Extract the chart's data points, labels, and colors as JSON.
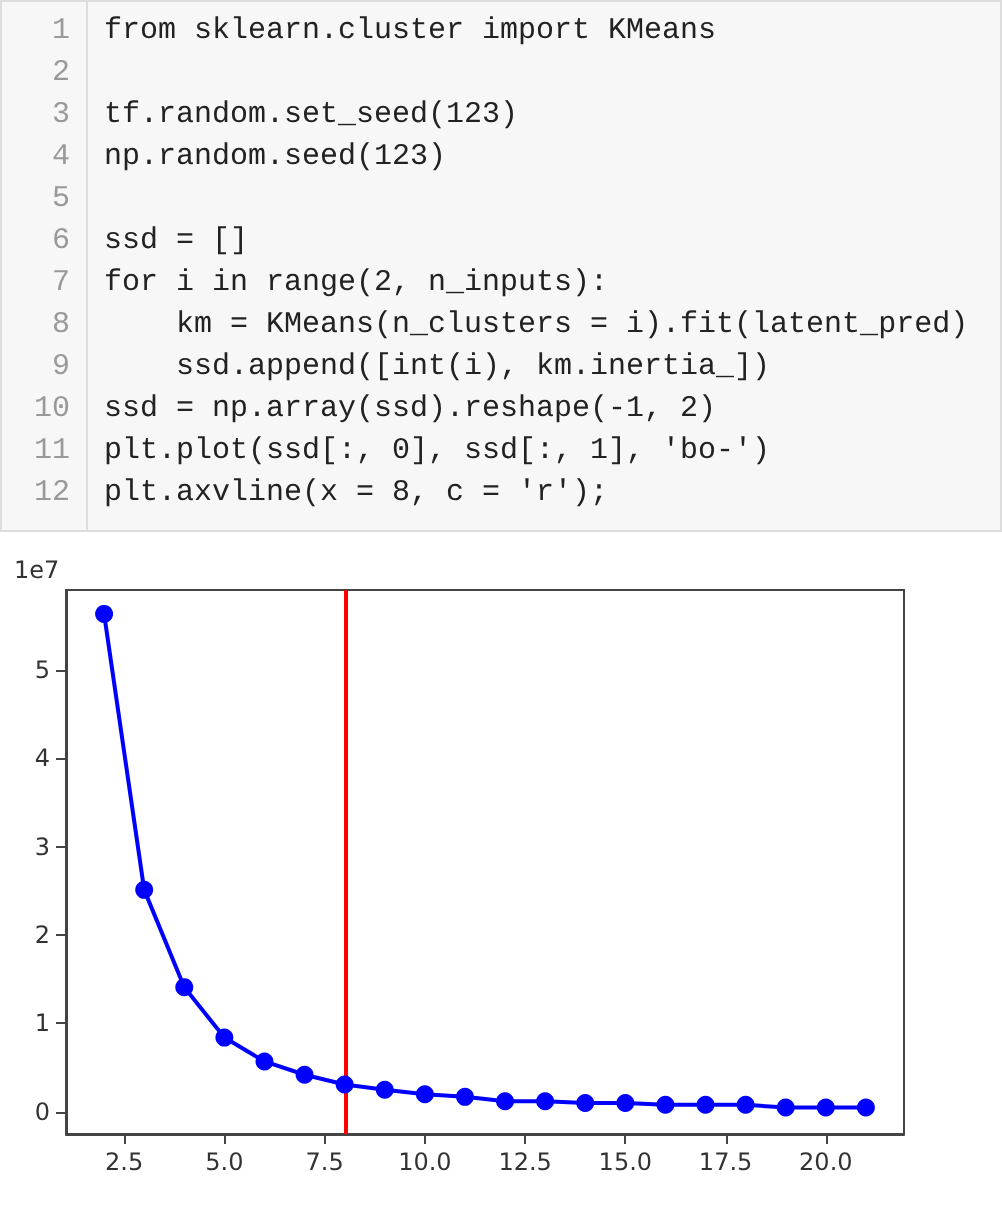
{
  "chart_data": {
    "type": "line",
    "ylabel": "1e7",
    "annotations": [
      "1 from sklearn.cluster import KMeans",
      "2",
      "3 tf.random.set_seed(123)",
      "4 np.random.seed(123)",
      "5",
      "6 ssd = []",
      "7 for i in range(2, n_inputs):",
      "8     km = KMeans(n_clusters = i).fit(latent_pred)",
      "9     ssd.append([int(i), km.inertia_])",
      "10 ssd = np.array(ssd).reshape(-1, 2)",
      "11 plt.plot(ssd[:, 0], ssd[:, 1], 'bo-')",
      "12 plt.axvline(x = 8, c = 'r');"
    ],
    "x": [
      2,
      3,
      4,
      5,
      6,
      7,
      8,
      9,
      10,
      11,
      12,
      13,
      14,
      15,
      16,
      17,
      18,
      19,
      20,
      21
    ],
    "series": [
      {
        "color": "#0000ff",
        "values": [
          5.63,
          2.51,
          1.41,
          0.84,
          0.57,
          0.42,
          0.31,
          0.25,
          0.2,
          0.17,
          0.12,
          0.12,
          0.1,
          0.1,
          0.08,
          0.08,
          0.08,
          0.05,
          0.05,
          0.05
        ]
      }
    ],
    "xlim": [
      1.05,
      21.95
    ],
    "xticks": [
      {
        "value": 2.5,
        "label": "2.5"
      },
      {
        "value": 5,
        "label": "5.0"
      },
      {
        "value": 7.5,
        "label": "7.5"
      },
      {
        "value": 10,
        "label": "10.0"
      },
      {
        "value": 12.5,
        "label": "12.5"
      },
      {
        "value": 15,
        "label": "15.0"
      },
      {
        "value": 17.5,
        "label": "17.5"
      },
      {
        "value": 20,
        "label": "20.0"
      }
    ],
    "ylim": [
      -0.25,
      5.9
    ],
    "yticks": [
      0,
      1,
      2,
      3,
      4,
      5
    ],
    "ref_lines": [
      {
        "axis": "x",
        "value": 8,
        "color": "#ff0000"
      }
    ],
    "marker": "circle",
    "line_style": "solid",
    "grid": false
  }
}
